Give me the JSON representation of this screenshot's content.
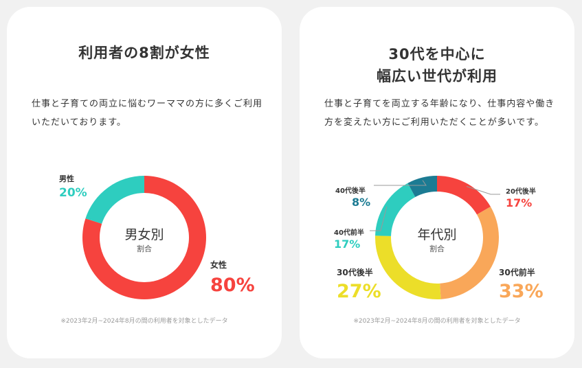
{
  "left_card": {
    "title": "利用者の8割が女性",
    "description": "仕事と子育ての両立に悩むワーママの方に多くご利用いただいております。",
    "footnote": "※2023年2月~2024年8月の間の利用者を対象としたデータ"
  },
  "right_card": {
    "title_line1": "30代を中心に",
    "title_line2": "幅広い世代が利用",
    "description": "仕事と子育てを両立する年齢になり、仕事内容や働き方を変えたい方にご利用いただくことが多いです。",
    "footnote": "※2023年2月~2024年8月の間の利用者を対象としたデータ"
  },
  "chart_data": [
    {
      "type": "pie",
      "title": "男女別",
      "subtitle": "割合",
      "categories": [
        "女性",
        "男性"
      ],
      "values": [
        80,
        20
      ],
      "labels": [
        "80%",
        "20%"
      ],
      "colors": [
        "#f6433e",
        "#2ecdbf"
      ],
      "donut": true
    },
    {
      "type": "pie",
      "title": "年代別",
      "subtitle": "割合",
      "categories": [
        "20代後半",
        "30代前半",
        "30代後半",
        "40代前半",
        "40代後半"
      ],
      "values": [
        17,
        33,
        27,
        17,
        8
      ],
      "labels": [
        "17%",
        "33%",
        "27%",
        "17%",
        "8%"
      ],
      "colors": [
        "#f6433e",
        "#f9a759",
        "#ecde29",
        "#2ecdbf",
        "#1c7b93"
      ],
      "donut": true
    }
  ]
}
